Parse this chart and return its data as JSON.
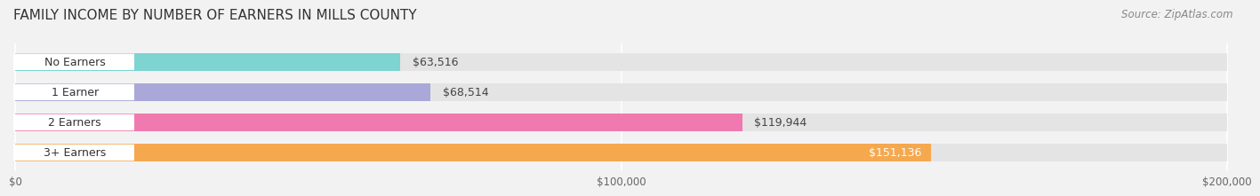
{
  "title": "FAMILY INCOME BY NUMBER OF EARNERS IN MILLS COUNTY",
  "source": "Source: ZipAtlas.com",
  "categories": [
    "No Earners",
    "1 Earner",
    "2 Earners",
    "3+ Earners"
  ],
  "values": [
    63516,
    68514,
    119944,
    151136
  ],
  "labels": [
    "$63,516",
    "$68,514",
    "$119,944",
    "$151,136"
  ],
  "bar_colors": [
    "#7dd4d0",
    "#a9a8d8",
    "#f07ab0",
    "#f5a84e"
  ],
  "xmax": 200000,
  "xtick_values": [
    0,
    100000,
    200000
  ],
  "xtick_labels": [
    "$0",
    "$100,000",
    "$200,000"
  ],
  "background_color": "#f2f2f2",
  "bar_background_color": "#e4e4e4",
  "title_fontsize": 11,
  "source_fontsize": 8.5,
  "label_fontsize": 9,
  "category_fontsize": 9
}
